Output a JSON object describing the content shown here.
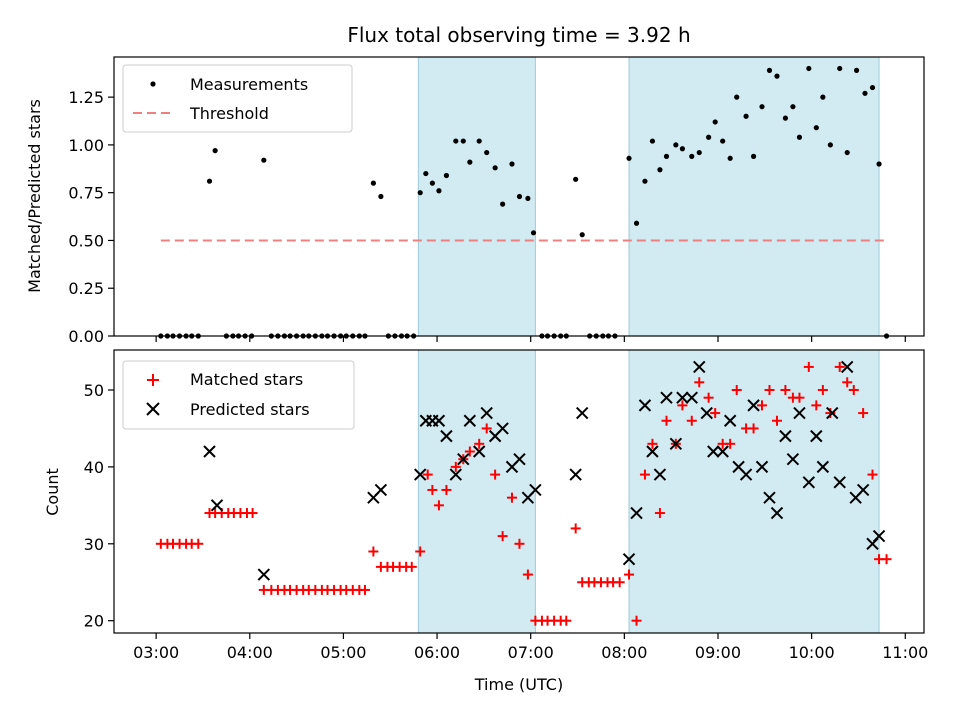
{
  "title": "Flux total observing time = 3.92 h",
  "x_tick_labels": [
    "03:00",
    "04:00",
    "05:00",
    "06:00",
    "07:00",
    "08:00",
    "09:00",
    "10:00",
    "11:00"
  ],
  "colors": {
    "matched": "#ff0000",
    "predicted": "#000000",
    "threshold": "#f08080",
    "shade": "#add8e6",
    "points": "#000000"
  },
  "chart_data": [
    {
      "type": "scatter",
      "ylabel": "Matched/Predicted stars",
      "xlabel": "",
      "x_unit": "hours UTC",
      "xlim": [
        2.55,
        11.2
      ],
      "ylim": [
        0,
        1.46
      ],
      "y_ticks": [
        0,
        0.25,
        0.5,
        0.75,
        1.0,
        1.25
      ],
      "y_tick_labels": [
        "0.00",
        "0.25",
        "0.50",
        "0.75",
        "1.00",
        "1.25"
      ],
      "shaded_intervals": [
        [
          5.8,
          7.05
        ],
        [
          8.05,
          10.72
        ]
      ],
      "legend": {
        "position": "upper-left",
        "entries": [
          "Measurements",
          "Threshold"
        ]
      },
      "threshold": {
        "name": "Threshold",
        "value": 0.5,
        "x_range": [
          3.05,
          10.8
        ]
      },
      "series": [
        {
          "name": "Measurements",
          "points": [
            [
              3.05,
              0
            ],
            [
              3.12,
              0
            ],
            [
              3.18,
              0
            ],
            [
              3.25,
              0
            ],
            [
              3.32,
              0
            ],
            [
              3.38,
              0
            ],
            [
              3.45,
              0
            ],
            [
              3.57,
              0.81
            ],
            [
              3.63,
              0.97
            ],
            [
              3.75,
              0
            ],
            [
              3.82,
              0
            ],
            [
              3.88,
              0
            ],
            [
              3.95,
              0
            ],
            [
              4.02,
              0
            ],
            [
              4.15,
              0.92
            ],
            [
              4.23,
              0
            ],
            [
              4.3,
              0
            ],
            [
              4.37,
              0
            ],
            [
              4.43,
              0
            ],
            [
              4.5,
              0
            ],
            [
              4.57,
              0
            ],
            [
              4.63,
              0
            ],
            [
              4.7,
              0
            ],
            [
              4.77,
              0
            ],
            [
              4.83,
              0
            ],
            [
              4.9,
              0
            ],
            [
              4.97,
              0
            ],
            [
              5.03,
              0
            ],
            [
              5.1,
              0
            ],
            [
              5.17,
              0
            ],
            [
              5.23,
              0
            ],
            [
              5.32,
              0.8
            ],
            [
              5.4,
              0.73
            ],
            [
              5.48,
              0
            ],
            [
              5.55,
              0
            ],
            [
              5.62,
              0
            ],
            [
              5.68,
              0
            ],
            [
              5.75,
              0
            ],
            [
              5.82,
              0.75
            ],
            [
              5.88,
              0.85
            ],
            [
              5.95,
              0.8
            ],
            [
              6.02,
              0.76
            ],
            [
              6.1,
              0.84
            ],
            [
              6.2,
              1.02
            ],
            [
              6.28,
              1.02
            ],
            [
              6.35,
              0.91
            ],
            [
              6.45,
              1.02
            ],
            [
              6.53,
              0.96
            ],
            [
              6.62,
              0.88
            ],
            [
              6.7,
              0.69
            ],
            [
              6.8,
              0.9
            ],
            [
              6.88,
              0.73
            ],
            [
              6.97,
              0.72
            ],
            [
              7.03,
              0.54
            ],
            [
              7.12,
              0
            ],
            [
              7.18,
              0
            ],
            [
              7.25,
              0
            ],
            [
              7.32,
              0
            ],
            [
              7.38,
              0
            ],
            [
              7.48,
              0.82
            ],
            [
              7.55,
              0.53
            ],
            [
              7.63,
              0
            ],
            [
              7.7,
              0
            ],
            [
              7.77,
              0
            ],
            [
              7.83,
              0
            ],
            [
              7.9,
              0
            ],
            [
              8.05,
              0.93
            ],
            [
              8.13,
              0.59
            ],
            [
              8.22,
              0.81
            ],
            [
              8.3,
              1.02
            ],
            [
              8.38,
              0.87
            ],
            [
              8.45,
              0.94
            ],
            [
              8.55,
              1.0
            ],
            [
              8.62,
              0.98
            ],
            [
              8.72,
              0.94
            ],
            [
              8.8,
              0.96
            ],
            [
              8.9,
              1.04
            ],
            [
              8.97,
              1.12
            ],
            [
              9.05,
              1.02
            ],
            [
              9.13,
              0.93
            ],
            [
              9.2,
              1.25
            ],
            [
              9.3,
              1.15
            ],
            [
              9.38,
              0.94
            ],
            [
              9.47,
              1.2
            ],
            [
              9.55,
              1.39
            ],
            [
              9.63,
              1.36
            ],
            [
              9.72,
              1.14
            ],
            [
              9.8,
              1.2
            ],
            [
              9.87,
              1.04
            ],
            [
              9.97,
              1.4
            ],
            [
              10.05,
              1.09
            ],
            [
              10.12,
              1.25
            ],
            [
              10.2,
              1.0
            ],
            [
              10.3,
              1.4
            ],
            [
              10.38,
              0.96
            ],
            [
              10.48,
              1.39
            ],
            [
              10.57,
              1.27
            ],
            [
              10.65,
              1.3
            ],
            [
              10.72,
              0.9
            ],
            [
              10.8,
              0
            ]
          ]
        }
      ]
    },
    {
      "type": "scatter",
      "ylabel": "Count",
      "xlabel": "Time (UTC)",
      "x_unit": "hours UTC",
      "xlim": [
        2.55,
        11.2
      ],
      "ylim": [
        18.4,
        55.2
      ],
      "y_ticks": [
        20,
        30,
        40,
        50
      ],
      "y_tick_labels": [
        "20",
        "30",
        "40",
        "50"
      ],
      "shaded_intervals": [
        [
          5.8,
          7.05
        ],
        [
          8.05,
          10.72
        ]
      ],
      "legend": {
        "position": "upper-left",
        "entries": [
          "Matched stars",
          "Predicted stars"
        ]
      },
      "series": [
        {
          "name": "Matched stars",
          "marker": "plus",
          "points": [
            [
              3.05,
              30
            ],
            [
              3.12,
              30
            ],
            [
              3.18,
              30
            ],
            [
              3.25,
              30
            ],
            [
              3.32,
              30
            ],
            [
              3.38,
              30
            ],
            [
              3.45,
              30
            ],
            [
              3.57,
              34
            ],
            [
              3.63,
              34
            ],
            [
              3.7,
              34
            ],
            [
              3.77,
              34
            ],
            [
              3.83,
              34
            ],
            [
              3.9,
              34
            ],
            [
              3.97,
              34
            ],
            [
              4.03,
              34
            ],
            [
              4.15,
              24
            ],
            [
              4.23,
              24
            ],
            [
              4.3,
              24
            ],
            [
              4.37,
              24
            ],
            [
              4.43,
              24
            ],
            [
              4.5,
              24
            ],
            [
              4.57,
              24
            ],
            [
              4.63,
              24
            ],
            [
              4.7,
              24
            ],
            [
              4.77,
              24
            ],
            [
              4.83,
              24
            ],
            [
              4.9,
              24
            ],
            [
              4.97,
              24
            ],
            [
              5.03,
              24
            ],
            [
              5.1,
              24
            ],
            [
              5.17,
              24
            ],
            [
              5.23,
              24
            ],
            [
              5.32,
              29
            ],
            [
              5.4,
              27
            ],
            [
              5.47,
              27
            ],
            [
              5.53,
              27
            ],
            [
              5.6,
              27
            ],
            [
              5.67,
              27
            ],
            [
              5.73,
              27
            ],
            [
              5.82,
              29
            ],
            [
              5.9,
              39
            ],
            [
              5.95,
              37
            ],
            [
              6.02,
              35
            ],
            [
              6.1,
              37
            ],
            [
              6.2,
              40
            ],
            [
              6.28,
              41
            ],
            [
              6.35,
              42
            ],
            [
              6.45,
              43
            ],
            [
              6.53,
              45
            ],
            [
              6.62,
              39
            ],
            [
              6.7,
              31
            ],
            [
              6.8,
              36
            ],
            [
              6.88,
              30
            ],
            [
              6.97,
              26
            ],
            [
              7.05,
              20
            ],
            [
              7.12,
              20
            ],
            [
              7.18,
              20
            ],
            [
              7.25,
              20
            ],
            [
              7.32,
              20
            ],
            [
              7.38,
              20
            ],
            [
              7.48,
              32
            ],
            [
              7.55,
              25
            ],
            [
              7.62,
              25
            ],
            [
              7.68,
              25
            ],
            [
              7.75,
              25
            ],
            [
              7.82,
              25
            ],
            [
              7.88,
              25
            ],
            [
              7.95,
              25
            ],
            [
              8.05,
              26
            ],
            [
              8.13,
              20
            ],
            [
              8.22,
              39
            ],
            [
              8.3,
              43
            ],
            [
              8.38,
              34
            ],
            [
              8.45,
              46
            ],
            [
              8.55,
              43
            ],
            [
              8.62,
              48
            ],
            [
              8.72,
              46
            ],
            [
              8.8,
              51
            ],
            [
              8.9,
              49
            ],
            [
              8.97,
              47
            ],
            [
              9.05,
              43
            ],
            [
              9.13,
              43
            ],
            [
              9.2,
              50
            ],
            [
              9.3,
              45
            ],
            [
              9.38,
              45
            ],
            [
              9.47,
              48
            ],
            [
              9.55,
              50
            ],
            [
              9.63,
              46
            ],
            [
              9.72,
              50
            ],
            [
              9.8,
              49
            ],
            [
              9.87,
              49
            ],
            [
              9.97,
              53
            ],
            [
              10.05,
              48
            ],
            [
              10.12,
              50
            ],
            [
              10.2,
              47
            ],
            [
              10.3,
              53
            ],
            [
              10.38,
              51
            ],
            [
              10.45,
              50
            ],
            [
              10.55,
              47
            ],
            [
              10.65,
              39
            ],
            [
              10.72,
              28
            ],
            [
              10.8,
              28
            ]
          ]
        },
        {
          "name": "Predicted stars",
          "marker": "x",
          "points": [
            [
              3.57,
              42
            ],
            [
              3.65,
              35
            ],
            [
              4.15,
              26
            ],
            [
              5.32,
              36
            ],
            [
              5.4,
              37
            ],
            [
              5.82,
              39
            ],
            [
              5.88,
              46
            ],
            [
              5.95,
              46
            ],
            [
              6.02,
              46
            ],
            [
              6.1,
              44
            ],
            [
              6.2,
              39
            ],
            [
              6.28,
              41
            ],
            [
              6.35,
              46
            ],
            [
              6.45,
              42
            ],
            [
              6.53,
              47
            ],
            [
              6.62,
              44
            ],
            [
              6.7,
              45
            ],
            [
              6.8,
              40
            ],
            [
              6.88,
              41
            ],
            [
              6.97,
              36
            ],
            [
              7.05,
              37
            ],
            [
              7.48,
              39
            ],
            [
              7.55,
              47
            ],
            [
              8.05,
              28
            ],
            [
              8.13,
              34
            ],
            [
              8.22,
              48
            ],
            [
              8.3,
              42
            ],
            [
              8.38,
              39
            ],
            [
              8.45,
              49
            ],
            [
              8.55,
              43
            ],
            [
              8.62,
              49
            ],
            [
              8.72,
              49
            ],
            [
              8.8,
              53
            ],
            [
              8.88,
              47
            ],
            [
              8.95,
              42
            ],
            [
              9.05,
              42
            ],
            [
              9.13,
              46
            ],
            [
              9.22,
              40
            ],
            [
              9.3,
              39
            ],
            [
              9.38,
              48
            ],
            [
              9.47,
              40
            ],
            [
              9.55,
              36
            ],
            [
              9.63,
              34
            ],
            [
              9.72,
              44
            ],
            [
              9.8,
              41
            ],
            [
              9.87,
              47
            ],
            [
              9.97,
              38
            ],
            [
              10.05,
              44
            ],
            [
              10.12,
              40
            ],
            [
              10.22,
              47
            ],
            [
              10.3,
              38
            ],
            [
              10.38,
              53
            ],
            [
              10.47,
              36
            ],
            [
              10.55,
              37
            ],
            [
              10.65,
              30
            ],
            [
              10.72,
              31
            ]
          ]
        }
      ]
    }
  ]
}
